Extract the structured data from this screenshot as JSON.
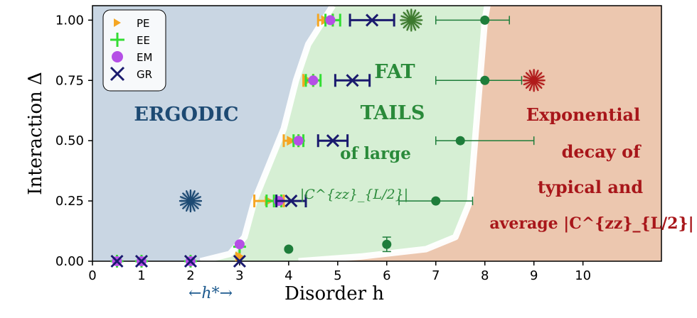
{
  "chart_data": {
    "type": "scatter",
    "xlabel": "Disorder h",
    "ylabel": "Interaction Δ",
    "xlim": [
      0,
      11.6
    ],
    "ylim": [
      0,
      1.06
    ],
    "xticks": [
      "0",
      "1",
      "2",
      "3",
      "4",
      "5",
      "6",
      "7",
      "8",
      "9",
      "10"
    ],
    "yticks": [
      "0.00",
      "0.25",
      "0.50",
      "0.75",
      "1.00"
    ],
    "legend_position": "top-left",
    "region_labels": {
      "ergodic": "ERGODIC",
      "fat_1": "FAT",
      "fat_2": "TAILS",
      "fat_3": "of large",
      "fat_4": "|C^{zz}_{L/2}|",
      "exp_1": "Exponential",
      "exp_2": "decay of",
      "exp_3": "typical and",
      "exp_4": "average |C^{zz}_{L/2}|"
    },
    "hstar_label": "←h*→",
    "region_colors": {
      "ergodic": "#c9d6e3",
      "fat": "#d6efd4",
      "exp": "#ecc7af"
    },
    "series": [
      {
        "name": "PE",
        "color": "#f5a623",
        "marker": "triangle-right",
        "points": [
          {
            "x": 0.5,
            "y": 0.0
          },
          {
            "x": 1.0,
            "y": 0.0
          },
          {
            "x": 2.0,
            "y": 0.0
          },
          {
            "x": 3.0,
            "y": 0.02,
            "xerr": [
              0.0,
              0.0
            ]
          },
          {
            "x": 3.6,
            "y": 0.25,
            "xerr": [
              0.3,
              0.3
            ]
          },
          {
            "x": 4.05,
            "y": 0.5,
            "xerr": [
              0.15,
              0.15
            ]
          },
          {
            "x": 4.4,
            "y": 0.75,
            "xerr": [
              0.1,
              0.1
            ]
          },
          {
            "x": 4.75,
            "y": 1.0,
            "xerr": [
              0.15,
              0.15
            ]
          }
        ]
      },
      {
        "name": "EE",
        "color": "#33dd33",
        "marker": "plus",
        "points": [
          {
            "x": 0.5,
            "y": 0.0
          },
          {
            "x": 1.0,
            "y": 0.0
          },
          {
            "x": 2.0,
            "y": 0.0
          },
          {
            "x": 3.0,
            "y": 0.06
          },
          {
            "x": 3.7,
            "y": 0.25,
            "xerr": [
              0.15,
              0.15
            ]
          },
          {
            "x": 4.2,
            "y": 0.5,
            "xerr": [
              0.1,
              0.1
            ]
          },
          {
            "x": 4.5,
            "y": 0.75,
            "xerr": [
              0.15,
              0.15
            ]
          },
          {
            "x": 4.9,
            "y": 1.0,
            "xerr": [
              0.15,
              0.15
            ]
          }
        ]
      },
      {
        "name": "EM",
        "color": "#b54fe6",
        "marker": "circle",
        "points": [
          {
            "x": 0.5,
            "y": 0.0
          },
          {
            "x": 1.0,
            "y": 0.0
          },
          {
            "x": 2.0,
            "y": 0.0
          },
          {
            "x": 3.0,
            "y": 0.07
          },
          {
            "x": 3.8,
            "y": 0.25
          },
          {
            "x": 4.2,
            "y": 0.5
          },
          {
            "x": 4.5,
            "y": 0.75
          },
          {
            "x": 4.85,
            "y": 1.0
          }
        ]
      },
      {
        "name": "GR",
        "color": "#1a1a6e",
        "marker": "x",
        "points": [
          {
            "x": 0.5,
            "y": 0.0
          },
          {
            "x": 1.0,
            "y": 0.0
          },
          {
            "x": 2.0,
            "y": 0.0
          },
          {
            "x": 3.0,
            "y": 0.0
          },
          {
            "x": 4.05,
            "y": 0.25,
            "xerr": [
              0.3,
              0.3
            ]
          },
          {
            "x": 4.9,
            "y": 0.5,
            "xerr": [
              0.3,
              0.3
            ]
          },
          {
            "x": 5.3,
            "y": 0.75,
            "xerr": [
              0.35,
              0.35
            ]
          },
          {
            "x": 5.7,
            "y": 1.0,
            "xerr": [
              0.45,
              0.45
            ]
          }
        ]
      },
      {
        "color": "#1e7d3a",
        "marker": "dot",
        "points": [
          {
            "x": 4.0,
            "y": 0.05
          },
          {
            "x": 6.0,
            "y": 0.07,
            "yerr": [
              0.03,
              0.03
            ]
          },
          {
            "x": 7.0,
            "y": 0.25,
            "xerr": [
              0.75,
              0.75
            ]
          },
          {
            "x": 7.5,
            "y": 0.5,
            "xerr": [
              0.5,
              1.5
            ]
          },
          {
            "x": 8.0,
            "y": 0.75,
            "xerr": [
              1.0,
              0.75
            ]
          },
          {
            "x": 8.0,
            "y": 1.0,
            "xerr": [
              1.0,
              0.5
            ]
          }
        ]
      }
    ],
    "stars": [
      {
        "x": 2.0,
        "y": 0.25,
        "color": "#1d4a73"
      },
      {
        "x": 6.5,
        "y": 1.0,
        "color": "#3d7a2e"
      },
      {
        "x": 9.0,
        "y": 0.75,
        "color": "#b01a1a"
      }
    ],
    "boundaries": {
      "ergodic_fat": [
        [
          2.2,
          0.0
        ],
        [
          2.8,
          0.03
        ],
        [
          3.1,
          0.1
        ],
        [
          3.3,
          0.25
        ],
        [
          3.6,
          0.4
        ],
        [
          3.9,
          0.55
        ],
        [
          4.15,
          0.75
        ],
        [
          4.4,
          0.9
        ],
        [
          4.9,
          1.06
        ]
      ],
      "fat_exp": [
        [
          4.2,
          0.0
        ],
        [
          5.5,
          0.02
        ],
        [
          6.8,
          0.05
        ],
        [
          7.4,
          0.1
        ],
        [
          7.7,
          0.25
        ],
        [
          7.8,
          0.5
        ],
        [
          7.9,
          0.75
        ],
        [
          8.0,
          1.0
        ],
        [
          8.05,
          1.06
        ]
      ]
    }
  }
}
